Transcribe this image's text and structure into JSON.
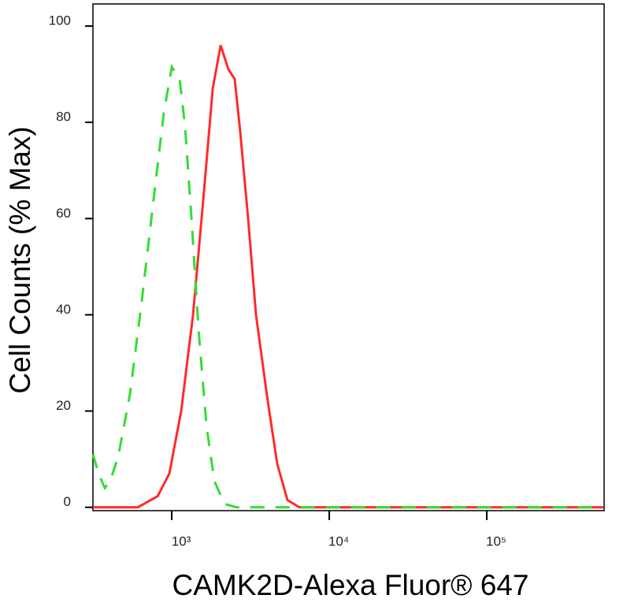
{
  "chart_data": {
    "type": "line",
    "xlabel": "CAMK2D-Alexa Fluor® 647",
    "ylabel": "Cell Counts (% Max)",
    "xscale": "log",
    "xlim": [
      316,
      556000
    ],
    "ylim": [
      -0.7,
      104.6
    ],
    "xticks": [
      {
        "value": 1000,
        "label": "10³"
      },
      {
        "value": 10000,
        "label": "10⁴"
      },
      {
        "value": 100000,
        "label": "10⁵"
      }
    ],
    "yticks": [
      0,
      20,
      40,
      60,
      80,
      100
    ],
    "series": [
      {
        "color": "#ff2a2a",
        "dash": false,
        "x": [
          316,
          610,
          813,
          966,
          1148,
          1365,
          1585,
          1820,
          2042,
          2291,
          2512,
          2723,
          3055,
          3428,
          4074,
          4677,
          5433,
          6457,
          550000
        ],
        "values": [
          0,
          0,
          2.3,
          7,
          20,
          40,
          64,
          87,
          96,
          91,
          89,
          78,
          60,
          40,
          22,
          9,
          1.5,
          0,
          0
        ]
      },
      {
        "color": "#33dd33",
        "dash": true,
        "x": [
          316,
          343,
          376,
          407,
          457,
          543,
          646,
          767,
          891,
          1000,
          1122,
          1216,
          1334,
          1479,
          1660,
          1862,
          2163,
          2570,
          550000
        ],
        "values": [
          11,
          7,
          4,
          5.5,
          10.5,
          23.5,
          43,
          64,
          82,
          91.5,
          89,
          79,
          60,
          37,
          17,
          5.5,
          0.7,
          0,
          0
        ]
      }
    ]
  }
}
